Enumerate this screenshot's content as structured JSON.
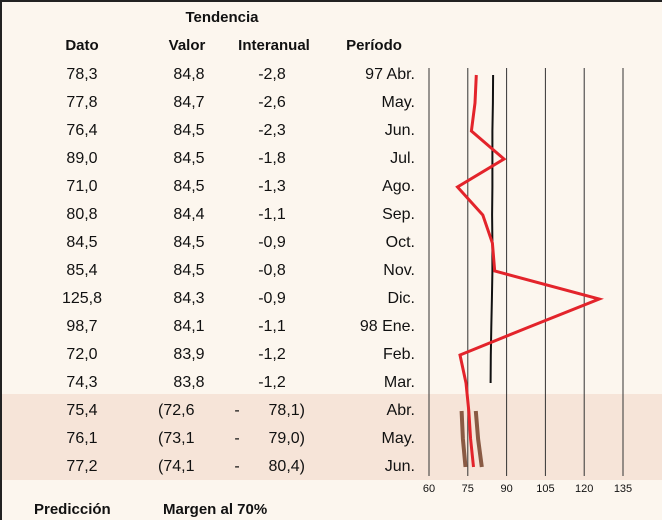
{
  "table": {
    "group_header": "Tendencia",
    "columns": [
      "Dato",
      "Valor",
      "Interanual",
      "Período"
    ],
    "interanual": [
      "-2,8",
      "-2,6",
      "-2,3",
      "-1,8",
      "-1,3",
      "-1,1",
      "-0,9",
      "-0,8",
      "-0,9",
      "-1,1",
      "-1,2",
      "-1,2",
      null,
      null,
      null
    ],
    "separator": "-",
    "footer": [
      "Predicción",
      "Margen al 70%"
    ]
  },
  "chart_data": {
    "type": "line",
    "categories": [
      "97 Abr.",
      "May.",
      "Jun.",
      "Jul.",
      "Ago.",
      "Sep.",
      "Oct.",
      "Nov.",
      "Dic.",
      "98 Ene.",
      "Feb.",
      "Mar.",
      "Abr.",
      "May.",
      "Jun."
    ],
    "series": [
      {
        "name": "Dato",
        "color": "#e3242b",
        "values": [
          78.3,
          77.8,
          76.4,
          89.0,
          71.0,
          80.8,
          84.5,
          85.4,
          125.8,
          98.7,
          72.0,
          74.3,
          75.4,
          76.1,
          77.2
        ],
        "value_labels": [
          "78,3",
          "77,8",
          "76,4",
          "89,0",
          "71,0",
          "80,8",
          "84,5",
          "85,4",
          "125,8",
          "98,7",
          "72,0",
          "74,3",
          "75,4",
          "76,1",
          "77,2"
        ]
      },
      {
        "name": "Valor",
        "color": "#111111",
        "values": [
          84.8,
          84.7,
          84.5,
          84.5,
          84.5,
          84.4,
          84.5,
          84.5,
          84.3,
          84.1,
          83.9,
          83.8,
          null,
          null,
          null
        ],
        "value_labels": [
          "84,8",
          "84,7",
          "84,5",
          "84,5",
          "84,5",
          "84,4",
          "84,5",
          "84,5",
          "84,3",
          "84,1",
          "83,9",
          "83,8",
          null,
          null,
          null
        ]
      }
    ],
    "interval": {
      "color": "#8a5a44",
      "lower": [
        null,
        null,
        null,
        null,
        null,
        null,
        null,
        null,
        null,
        null,
        null,
        null,
        72.6,
        73.1,
        74.1
      ],
      "lower_labels": [
        null,
        null,
        null,
        null,
        null,
        null,
        null,
        null,
        null,
        null,
        null,
        null,
        "(72,6",
        "(73,1",
        "(74,1"
      ],
      "upper": [
        null,
        null,
        null,
        null,
        null,
        null,
        null,
        null,
        null,
        null,
        null,
        null,
        78.1,
        79.0,
        80.4
      ],
      "upper_labels": [
        null,
        null,
        null,
        null,
        null,
        null,
        null,
        null,
        null,
        null,
        null,
        null,
        "78,1)",
        "79,0)",
        "80,4)"
      ]
    },
    "xlim": [
      60,
      135
    ],
    "xticks": [
      60,
      75,
      90,
      105,
      120,
      135
    ]
  }
}
